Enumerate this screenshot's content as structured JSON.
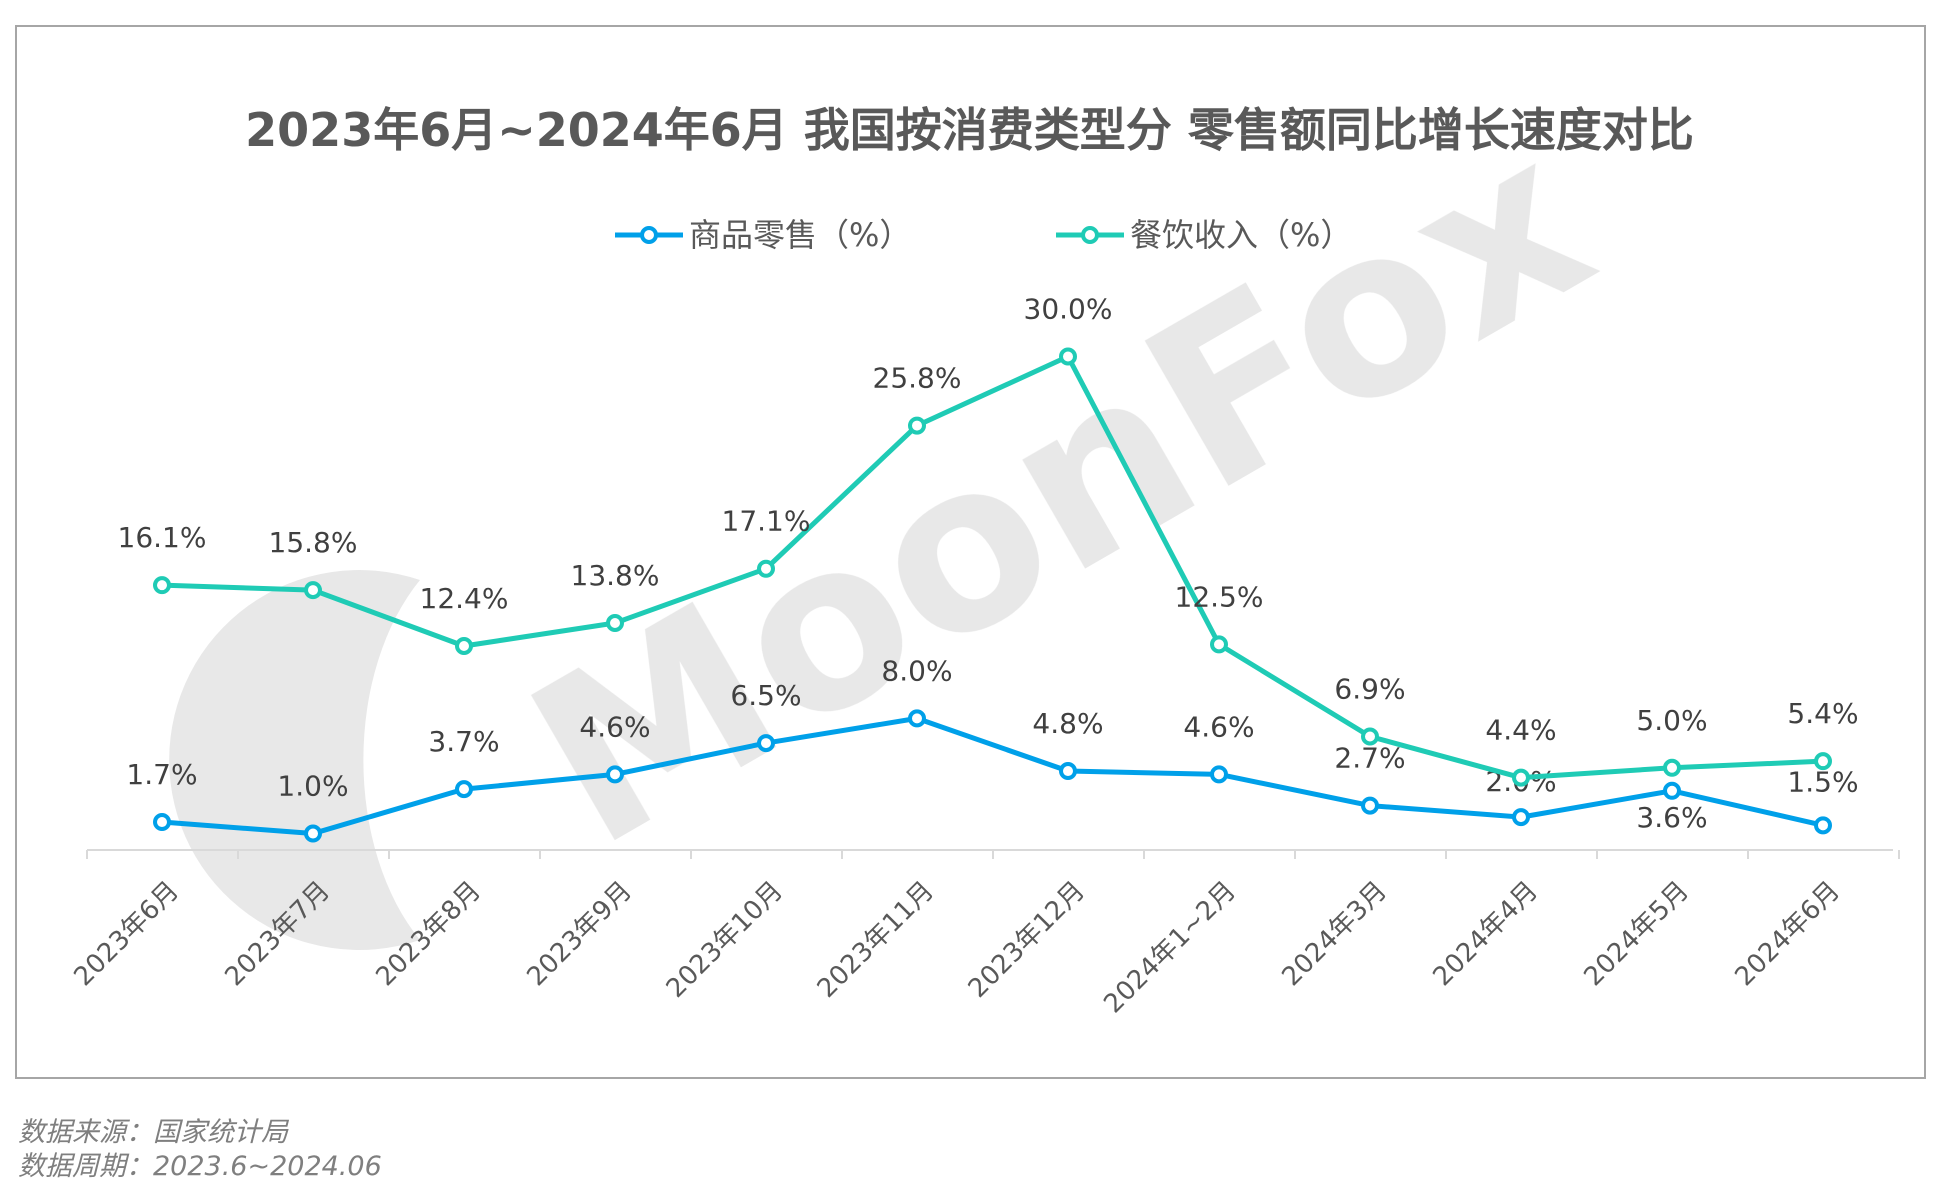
{
  "chart_data": {
    "type": "line",
    "title": "2023年6月~2024年6月 我国按消费类型分 零售额同比增长速度对比",
    "categories": [
      "2023年6月",
      "2023年7月",
      "2023年8月",
      "2023年9月",
      "2023年10月",
      "2023年11月",
      "2023年12月",
      "2024年1~2月",
      "2024年3月",
      "2024年4月",
      "2024年5月",
      "2024年6月"
    ],
    "series": [
      {
        "name": "商品零售（%）",
        "color": "#00a0e9",
        "values": [
          1.7,
          1.0,
          3.7,
          4.6,
          6.5,
          8.0,
          4.8,
          4.6,
          2.7,
          2.0,
          3.6,
          1.5
        ]
      },
      {
        "name": "餐饮收入（%）",
        "color": "#1fcbb5",
        "values": [
          16.1,
          15.8,
          12.4,
          13.8,
          17.1,
          25.8,
          30.0,
          12.5,
          6.9,
          4.4,
          5.0,
          5.4
        ]
      }
    ],
    "value_suffix": "%",
    "legend": "top",
    "grid": false,
    "xlabel": "",
    "ylabel": ""
  },
  "watermark": "MoonFox",
  "footer": {
    "source": "数据来源：国家统计局",
    "period": "数据周期：2023.6~2024.06"
  }
}
